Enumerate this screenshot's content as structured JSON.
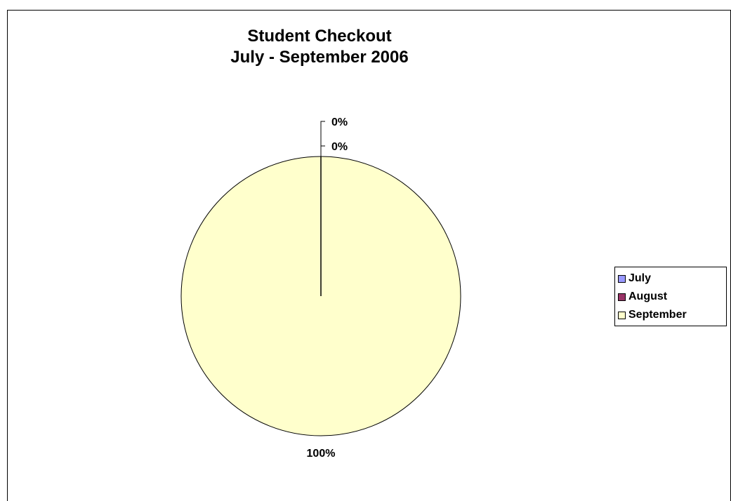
{
  "chart_data": {
    "type": "pie",
    "title": [
      "Student Checkout",
      "July - September 2006"
    ],
    "categories": [
      "July",
      "August",
      "September"
    ],
    "values": [
      0,
      0,
      100
    ],
    "data_labels": [
      "0%",
      "0%",
      "100%"
    ],
    "colors": [
      "#9999ff",
      "#993366",
      "#ffffcc"
    ],
    "legend_placement": "right"
  },
  "legend": {
    "items": [
      {
        "label": "July",
        "color": "#9999ff"
      },
      {
        "label": "August",
        "color": "#993366"
      },
      {
        "label": "September",
        "color": "#ffffcc"
      }
    ]
  }
}
